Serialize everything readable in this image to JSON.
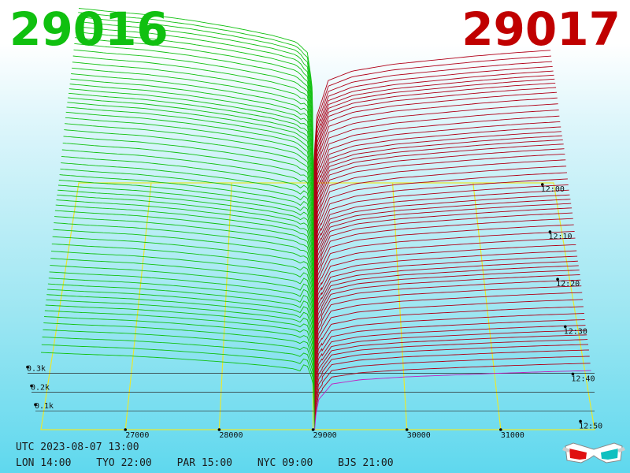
{
  "header": {
    "left_price": "29016",
    "right_price": "29017",
    "left_color": "#10c010",
    "right_color": "#c00000"
  },
  "footer": {
    "utc": "UTC 2023-08-07 13:00",
    "cities": [
      {
        "label": "LON 14:00"
      },
      {
        "label": "TYO 22:00"
      },
      {
        "label": "PAR 15:00"
      },
      {
        "label": "NYC 09:00"
      },
      {
        "label": "BJS 21:00"
      }
    ]
  },
  "icons": {
    "glasses": "3d-glasses-icon"
  },
  "chart_data": {
    "type": "area",
    "title": "",
    "subtitle": "",
    "x_ticks": [
      27000,
      28000,
      29000,
      30000,
      31000
    ],
    "x_tick_labels": [
      "27000",
      "28000",
      "29000",
      "30000",
      "31000"
    ],
    "y_ticks": [
      100,
      200,
      300
    ],
    "y_tick_labels": [
      "0.1k",
      "0.2k",
      "0.3k"
    ],
    "time_ticks": [
      "12:00",
      "12:10",
      "12:20",
      "12:30",
      "12:40",
      "12:50"
    ],
    "mid_price": 29016.5,
    "xlim": [
      26100,
      32000
    ],
    "ylim": [
      0,
      1300
    ],
    "series": [
      {
        "color": "#10c010"
      },
      {
        "color": "#b00018"
      }
    ],
    "snapshot_count": 60,
    "bid_profile": [
      [
        26100,
        1290
      ],
      [
        26500,
        1265
      ],
      [
        27000,
        1240
      ],
      [
        27500,
        1200
      ],
      [
        28000,
        1150
      ],
      [
        28500,
        1090
      ],
      [
        28800,
        1040
      ],
      [
        28950,
        960
      ],
      [
        29000,
        700
      ],
      [
        29010,
        350
      ],
      [
        29016,
        0
      ]
    ],
    "ask_profile": [
      [
        29017,
        0
      ],
      [
        29030,
        250
      ],
      [
        29060,
        500
      ],
      [
        29200,
        760
      ],
      [
        29500,
        830
      ],
      [
        30000,
        880
      ],
      [
        30500,
        910
      ],
      [
        31000,
        940
      ],
      [
        31500,
        965
      ],
      [
        32000,
        985
      ]
    ],
    "grid": true
  }
}
